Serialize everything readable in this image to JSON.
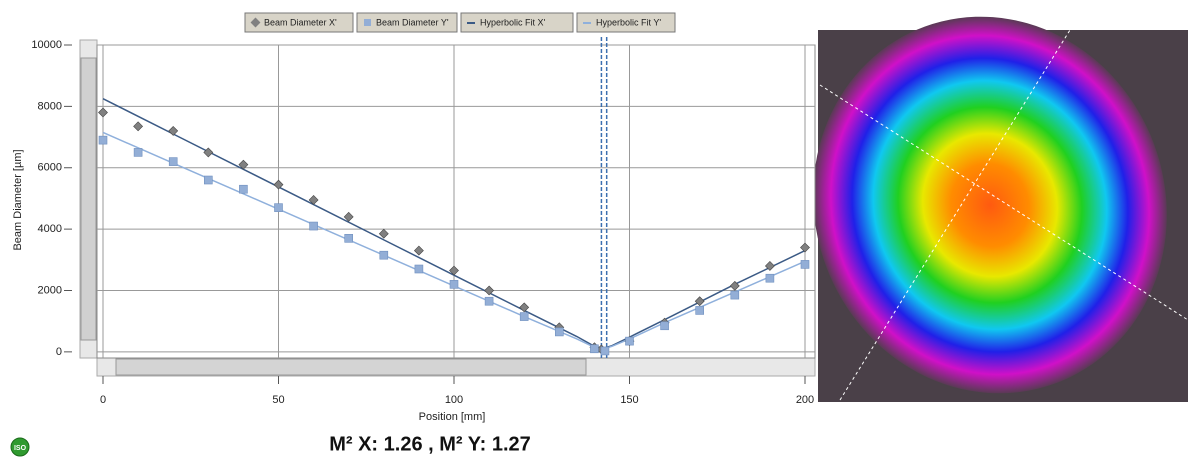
{
  "chart_data": {
    "type": "scatter",
    "legend": [
      "Beam Diameter X'",
      "Beam Diameter Y'",
      "Hyperbolic Fit X'",
      "Hyperbolic Fit Y'"
    ],
    "xlabel": "Position [mm]",
    "ylabel": "Beam Diameter [µm]",
    "xlim": [
      0,
      200
    ],
    "xticks": [
      0,
      50,
      100,
      150,
      200
    ],
    "ylim": [
      -200,
      10000
    ],
    "yticks": [
      0,
      2000,
      4000,
      6000,
      8000,
      10000
    ],
    "grid": true,
    "waist_lines": [
      142,
      143.5
    ],
    "series": [
      {
        "name": "Beam Diameter X'",
        "kind": "diamond",
        "color": "#808080",
        "x": [
          0,
          10,
          20,
          30,
          40,
          50,
          60,
          70,
          80,
          90,
          100,
          110,
          120,
          130,
          140,
          142,
          150,
          160,
          170,
          180,
          190,
          200
        ],
        "values": [
          7800,
          7350,
          7200,
          6500,
          6100,
          5450,
          4950,
          4400,
          3850,
          3300,
          2650,
          2000,
          1450,
          800,
          150,
          80,
          350,
          950,
          1650,
          2150,
          2800,
          3400
        ]
      },
      {
        "name": "Beam Diameter Y'",
        "kind": "square",
        "color": "#93aed6",
        "x": [
          0,
          10,
          20,
          30,
          40,
          50,
          60,
          70,
          80,
          90,
          100,
          110,
          120,
          130,
          140,
          143,
          150,
          160,
          170,
          180,
          190,
          200
        ],
        "values": [
          6900,
          6500,
          6200,
          5600,
          5300,
          4700,
          4100,
          3700,
          3150,
          2700,
          2200,
          1650,
          1150,
          650,
          100,
          30,
          350,
          850,
          1350,
          1850,
          2400,
          2850
        ]
      },
      {
        "name": "Hyperbolic Fit X'",
        "kind": "line",
        "color": "#3b5a85",
        "x": [
          0,
          20,
          40,
          60,
          80,
          100,
          120,
          135,
          140,
          142,
          145,
          150,
          160,
          180,
          200
        ],
        "values": [
          8250,
          7100,
          5950,
          4800,
          3650,
          2500,
          1350,
          500,
          180,
          100,
          200,
          480,
          1050,
          2200,
          3300
        ]
      },
      {
        "name": "Hyperbolic Fit Y'",
        "kind": "line",
        "color": "#8fb0dc",
        "x": [
          0,
          20,
          40,
          60,
          80,
          100,
          120,
          135,
          140,
          142,
          145,
          150,
          160,
          180,
          200
        ],
        "values": [
          7150,
          6150,
          5150,
          4150,
          3150,
          2150,
          1150,
          420,
          150,
          80,
          180,
          420,
          950,
          1950,
          2950
        ]
      }
    ]
  },
  "result": "M² X: 1.26 , M² Y: 1.27",
  "badge": "ISO"
}
